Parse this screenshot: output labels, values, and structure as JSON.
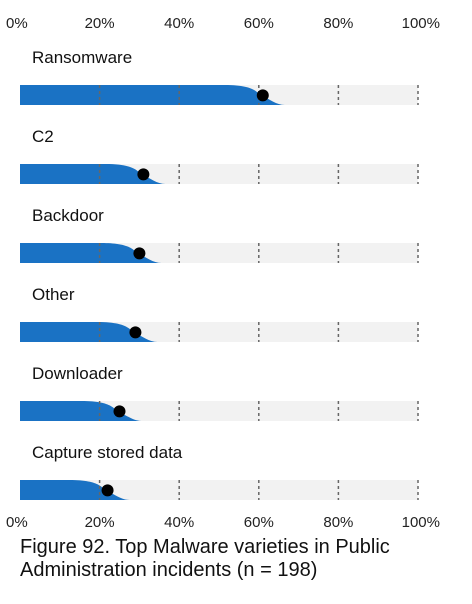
{
  "caption": "Figure 92. Top Malware varieties in Public Administration incidents (n = 198)",
  "chart_data": {
    "type": "bar",
    "categories": [
      "Ransomware",
      "C2",
      "Backdoor",
      "Other",
      "Downloader",
      "Capture stored data"
    ],
    "values": [
      61,
      31,
      30,
      29,
      25,
      22
    ],
    "xlim": [
      0,
      100
    ],
    "ticks": [
      0,
      20,
      40,
      60,
      80,
      100
    ],
    "tick_labels": [
      "0%",
      "20%",
      "40%",
      "60%",
      "80%",
      "100%"
    ],
    "axis_position": "top and bottom",
    "grid": true,
    "colors": {
      "fill": "#1a72c4",
      "track": "#f2f2f2",
      "dot": "#000000",
      "grid": "#666666"
    }
  }
}
